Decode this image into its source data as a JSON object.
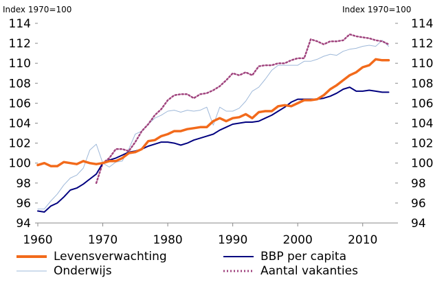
{
  "chart_data": {
    "type": "line",
    "title": "",
    "ylabel_left": "Index 1970=100",
    "ylabel_right": "Index 1970=100",
    "xlabel": "",
    "xlim": [
      1960,
      2015
    ],
    "ylim": [
      94,
      114
    ],
    "xticks": [
      "1960",
      "1970",
      "1980",
      "1990",
      "2000",
      "2010"
    ],
    "yticks": [
      "94",
      "96",
      "98",
      "100",
      "102",
      "104",
      "106",
      "108",
      "110",
      "112",
      "114"
    ],
    "grid": false,
    "legend_position": "bottom",
    "series": [
      {
        "name": "Levensverwachting",
        "color": "#F26A1B",
        "style": "solid-thick",
        "x": [
          1960,
          1961,
          1962,
          1963,
          1964,
          1965,
          1966,
          1967,
          1968,
          1969,
          1970,
          1971,
          1972,
          1973,
          1974,
          1975,
          1976,
          1977,
          1978,
          1979,
          1980,
          1981,
          1982,
          1983,
          1984,
          1985,
          1986,
          1987,
          1988,
          1989,
          1990,
          1991,
          1992,
          1993,
          1994,
          1995,
          1996,
          1997,
          1998,
          1999,
          2000,
          2001,
          2002,
          2003,
          2004,
          2005,
          2006,
          2007,
          2008,
          2009,
          2010,
          2011,
          2012,
          2013,
          2014
        ],
        "values": [
          99.8,
          100.0,
          99.7,
          99.7,
          100.1,
          100.0,
          99.9,
          100.2,
          100.0,
          99.9,
          100.0,
          100.2,
          100.2,
          100.5,
          101.0,
          101.1,
          101.4,
          102.2,
          102.3,
          102.7,
          102.9,
          103.2,
          103.2,
          103.4,
          103.5,
          103.6,
          103.6,
          104.2,
          104.5,
          104.2,
          104.5,
          104.6,
          104.9,
          104.5,
          105.1,
          105.2,
          105.2,
          105.7,
          105.8,
          105.7,
          106.0,
          106.3,
          106.3,
          106.4,
          106.8,
          107.4,
          107.8,
          108.3,
          108.8,
          109.1,
          109.6,
          109.8,
          110.4,
          110.3,
          110.3
        ]
      },
      {
        "name": "BBP per capita",
        "color": "#00007F",
        "style": "solid",
        "x": [
          1960,
          1961,
          1962,
          1963,
          1964,
          1965,
          1966,
          1967,
          1968,
          1969,
          1970,
          1971,
          1972,
          1973,
          1974,
          1975,
          1976,
          1977,
          1978,
          1979,
          1980,
          1981,
          1982,
          1983,
          1984,
          1985,
          1986,
          1987,
          1988,
          1989,
          1990,
          1991,
          1992,
          1993,
          1994,
          1995,
          1996,
          1997,
          1998,
          1999,
          2000,
          2001,
          2002,
          2003,
          2004,
          2005,
          2006,
          2007,
          2008,
          2009,
          2010,
          2011,
          2012,
          2013,
          2014
        ],
        "values": [
          95.2,
          95.1,
          95.7,
          96.0,
          96.6,
          97.3,
          97.5,
          97.9,
          98.4,
          98.9,
          100.0,
          100.3,
          100.5,
          100.8,
          101.1,
          101.2,
          101.4,
          101.7,
          101.9,
          102.1,
          102.1,
          102.0,
          101.8,
          102.0,
          102.3,
          102.5,
          102.7,
          102.9,
          103.3,
          103.6,
          103.9,
          104.0,
          104.1,
          104.1,
          104.2,
          104.5,
          104.8,
          105.2,
          105.6,
          106.1,
          106.4,
          106.4,
          106.4,
          106.4,
          106.5,
          106.7,
          107.0,
          107.4,
          107.6,
          107.2,
          107.2,
          107.3,
          107.2,
          107.1,
          107.1
        ]
      },
      {
        "name": "Onderwijs",
        "color": "#9EB8D9",
        "style": "solid-thin",
        "x": [
          1960,
          1961,
          1962,
          1963,
          1964,
          1965,
          1966,
          1967,
          1968,
          1969,
          1970,
          1971,
          1972,
          1973,
          1974,
          1975,
          1976,
          1977,
          1978,
          1979,
          1980,
          1981,
          1982,
          1983,
          1984,
          1985,
          1986,
          1987,
          1988,
          1989,
          1990,
          1991,
          1992,
          1993,
          1994,
          1995,
          1996,
          1997,
          1998,
          1999,
          2000,
          2001,
          2002,
          2003,
          2004,
          2005,
          2006,
          2007,
          2008,
          2009,
          2010,
          2011,
          2012,
          2013,
          2014
        ],
        "values": [
          95.4,
          95.4,
          96.2,
          96.9,
          97.8,
          98.5,
          98.8,
          99.5,
          101.3,
          101.9,
          100.0,
          99.6,
          100.1,
          100.2,
          101.4,
          102.9,
          103.2,
          103.9,
          104.5,
          104.8,
          105.2,
          105.3,
          105.1,
          105.3,
          105.2,
          105.3,
          105.6,
          103.8,
          105.6,
          105.2,
          105.2,
          105.5,
          106.2,
          107.2,
          107.6,
          108.4,
          109.3,
          109.8,
          109.8,
          109.8,
          109.8,
          110.2,
          110.2,
          110.4,
          110.7,
          110.9,
          110.8,
          111.2,
          111.4,
          111.5,
          111.7,
          111.8,
          111.7,
          112.3,
          111.7
        ]
      },
      {
        "name": "Aantal vakanties",
        "color": "#A0447E",
        "style": "dotted",
        "x": [
          1969,
          1970,
          1971,
          1972,
          1973,
          1974,
          1975,
          1976,
          1977,
          1978,
          1979,
          1980,
          1981,
          1982,
          1983,
          1984,
          1985,
          1986,
          1987,
          1988,
          1989,
          1990,
          1991,
          1992,
          1993,
          1994,
          1995,
          1996,
          1997,
          1998,
          1999,
          2000,
          2001,
          2002,
          2003,
          2004,
          2005,
          2006,
          2007,
          2008,
          2009,
          2010,
          2011,
          2012,
          2013,
          2014
        ],
        "values": [
          98.0,
          100.0,
          100.5,
          101.4,
          101.4,
          101.2,
          102.1,
          103.2,
          103.9,
          104.8,
          105.4,
          106.3,
          106.8,
          106.9,
          106.9,
          106.5,
          106.9,
          107.0,
          107.3,
          107.7,
          108.3,
          109.0,
          108.8,
          109.1,
          108.8,
          109.7,
          109.8,
          109.8,
          110.0,
          110.0,
          110.3,
          110.5,
          110.5,
          112.4,
          112.2,
          111.9,
          112.2,
          112.2,
          112.3,
          112.9,
          112.7,
          112.6,
          112.5,
          112.3,
          112.2,
          111.9
        ]
      }
    ]
  }
}
